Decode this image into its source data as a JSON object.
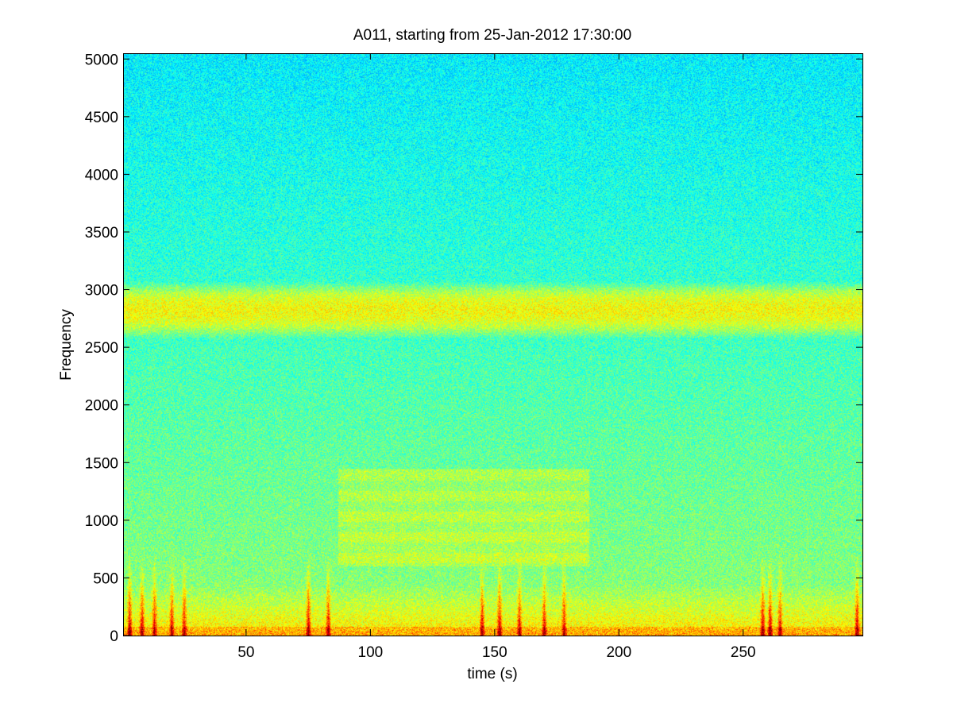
{
  "chart_data": {
    "type": "heatmap",
    "title": "A011, starting from 25-Jan-2012 17:30:00",
    "xlabel": "time (s)",
    "ylabel": "Frequency",
    "xlim": [
      0.5,
      298
    ],
    "ylim": [
      0,
      5050
    ],
    "x_ticks": [
      50,
      100,
      150,
      200,
      250
    ],
    "y_ticks": [
      0,
      500,
      1000,
      1500,
      2000,
      2500,
      3000,
      3500,
      4000,
      4500,
      5000
    ],
    "grid": false,
    "colormap": "jet",
    "colors": {
      "background_high_freq": "#3cf0c8",
      "mid_freq": "#9cf060",
      "band": "#e6f020",
      "low_freq": "#f0e020",
      "impulse": "#c81e00"
    },
    "features": {
      "band": {
        "freq_range": [
          2650,
          3000
        ],
        "level": 0.62
      },
      "tonal_block": {
        "time_range": [
          87,
          188
        ],
        "freq_range": [
          600,
          1450
        ],
        "level": 0.55
      },
      "low_energy_floor": {
        "freq_range": [
          0,
          450
        ],
        "level": 0.7
      },
      "transients": [
        {
          "time": 3,
          "level": 0.95
        },
        {
          "time": 8,
          "level": 0.9
        },
        {
          "time": 13,
          "level": 0.9
        },
        {
          "time": 20,
          "level": 0.85
        },
        {
          "time": 25,
          "level": 0.85
        },
        {
          "time": 75,
          "level": 0.95
        },
        {
          "time": 83,
          "level": 0.85
        },
        {
          "time": 145,
          "level": 0.9
        },
        {
          "time": 152,
          "level": 0.95
        },
        {
          "time": 160,
          "level": 0.85
        },
        {
          "time": 170,
          "level": 0.85
        },
        {
          "time": 178,
          "level": 0.85
        },
        {
          "time": 258,
          "level": 0.9
        },
        {
          "time": 261,
          "level": 0.95
        },
        {
          "time": 265,
          "level": 0.85
        },
        {
          "time": 296,
          "level": 0.9
        }
      ]
    }
  }
}
